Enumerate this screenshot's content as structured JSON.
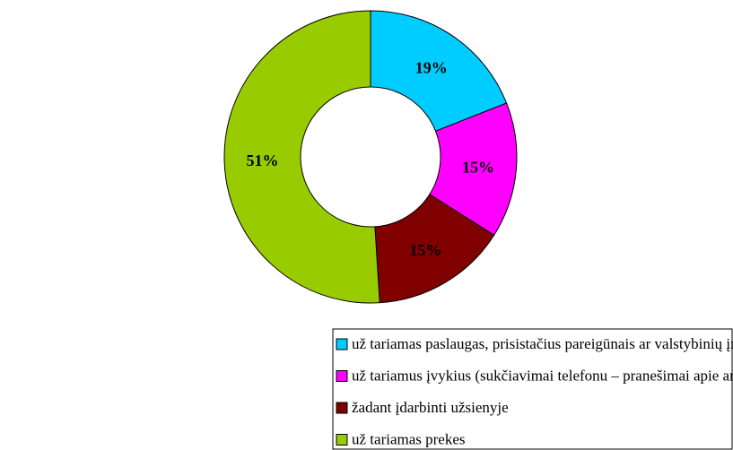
{
  "chart_data": {
    "type": "pie",
    "categories": [
      "už tariamas paslaugas, prisistačius pareigūnais ar valstybinių įmonių tarnautojais",
      "už tariamus įvykius (sukčiavimai telefonu – pranešimai apie artimo asmens nelaimę)",
      "žadant įdarbinti užsienyje",
      "už tariamas prekes"
    ],
    "values": [
      19,
      15,
      15,
      51
    ],
    "value_labels": [
      "19%",
      "15%",
      "15%",
      "51%"
    ],
    "colors": [
      "#00ccff",
      "#ff00ff",
      "#800000",
      "#99cc00"
    ],
    "donut": true
  }
}
